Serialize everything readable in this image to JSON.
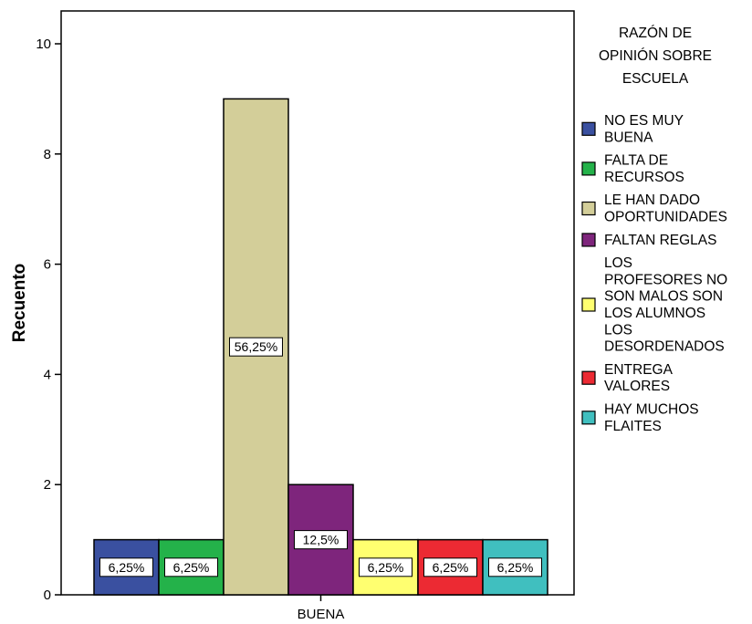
{
  "chart_data": {
    "type": "bar",
    "categories": [
      "BUENA"
    ],
    "xlabel": "",
    "ylabel": "Recuento",
    "ylim": [
      0,
      10
    ],
    "yticks": [
      "0",
      "2",
      "4",
      "6",
      "8",
      "10"
    ],
    "legend_title": [
      "RAZÓN DE",
      "OPINIÓN SOBRE",
      "ESCUELA"
    ],
    "legend_position": "right",
    "series": [
      {
        "name": "NO ES MUY BUENA",
        "legend_lines": [
          "NO ES MUY",
          "BUENA"
        ],
        "values": [
          1
        ],
        "label": "6,25%",
        "color": "#3a50a0"
      },
      {
        "name": "FALTA DE RECURSOS",
        "legend_lines": [
          "FALTA DE",
          "RECURSOS"
        ],
        "values": [
          1
        ],
        "label": "6,25%",
        "color": "#24b24a"
      },
      {
        "name": "LE HAN DADO OPORTUNIDADES",
        "legend_lines": [
          "LE HAN DADO",
          "OPORTUNIDADES"
        ],
        "values": [
          9
        ],
        "label": "56,25%",
        "color": "#d3ce99"
      },
      {
        "name": "FALTAN REGLAS",
        "legend_lines": [
          "FALTAN REGLAS"
        ],
        "values": [
          2
        ],
        "label": "12,5%",
        "color": "#7e257c"
      },
      {
        "name": "LOS PROFESORES NO SON MALOS SON LOS ALUMNOS LOS DESORDENADOS",
        "legend_lines": [
          "LOS",
          "PROFESORES NO",
          "SON MALOS SON",
          "LOS ALUMNOS",
          "LOS",
          "DESORDENADOS"
        ],
        "values": [
          1
        ],
        "label": "6,25%",
        "color": "#ffff70"
      },
      {
        "name": "ENTREGA VALORES",
        "legend_lines": [
          "ENTREGA",
          "VALORES"
        ],
        "values": [
          1
        ],
        "label": "6,25%",
        "color": "#ec2a33"
      },
      {
        "name": "HAY MUCHOS FLAITES",
        "legend_lines": [
          "HAY MUCHOS",
          "FLAITES"
        ],
        "values": [
          1
        ],
        "label": "6,25%",
        "color": "#40bfbf"
      }
    ]
  }
}
